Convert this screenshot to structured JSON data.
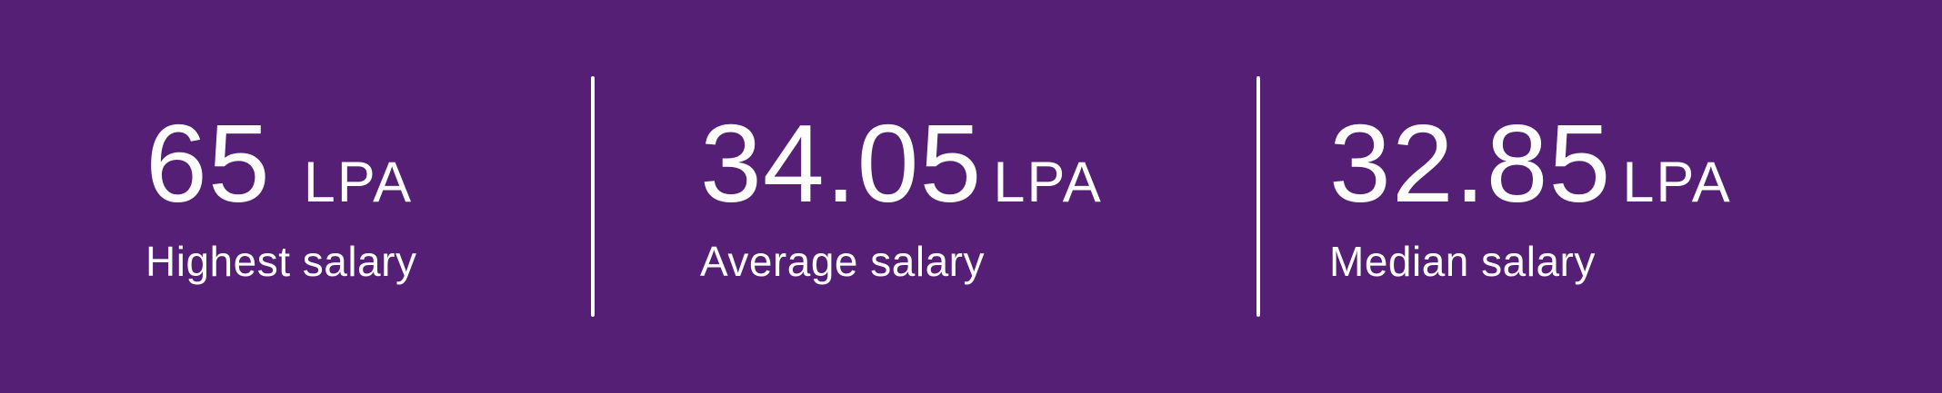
{
  "theme": {
    "background_color": "#541F74",
    "text_color": "#FFFFFF",
    "divider_color": "#FFFFFF"
  },
  "stats": [
    {
      "value": "65",
      "unit": "LPA",
      "label": "Highest salary"
    },
    {
      "value": "34.05",
      "unit": "LPA",
      "label": "Average salary"
    },
    {
      "value": "32.85",
      "unit": "LPA",
      "label": "Median salary"
    }
  ]
}
